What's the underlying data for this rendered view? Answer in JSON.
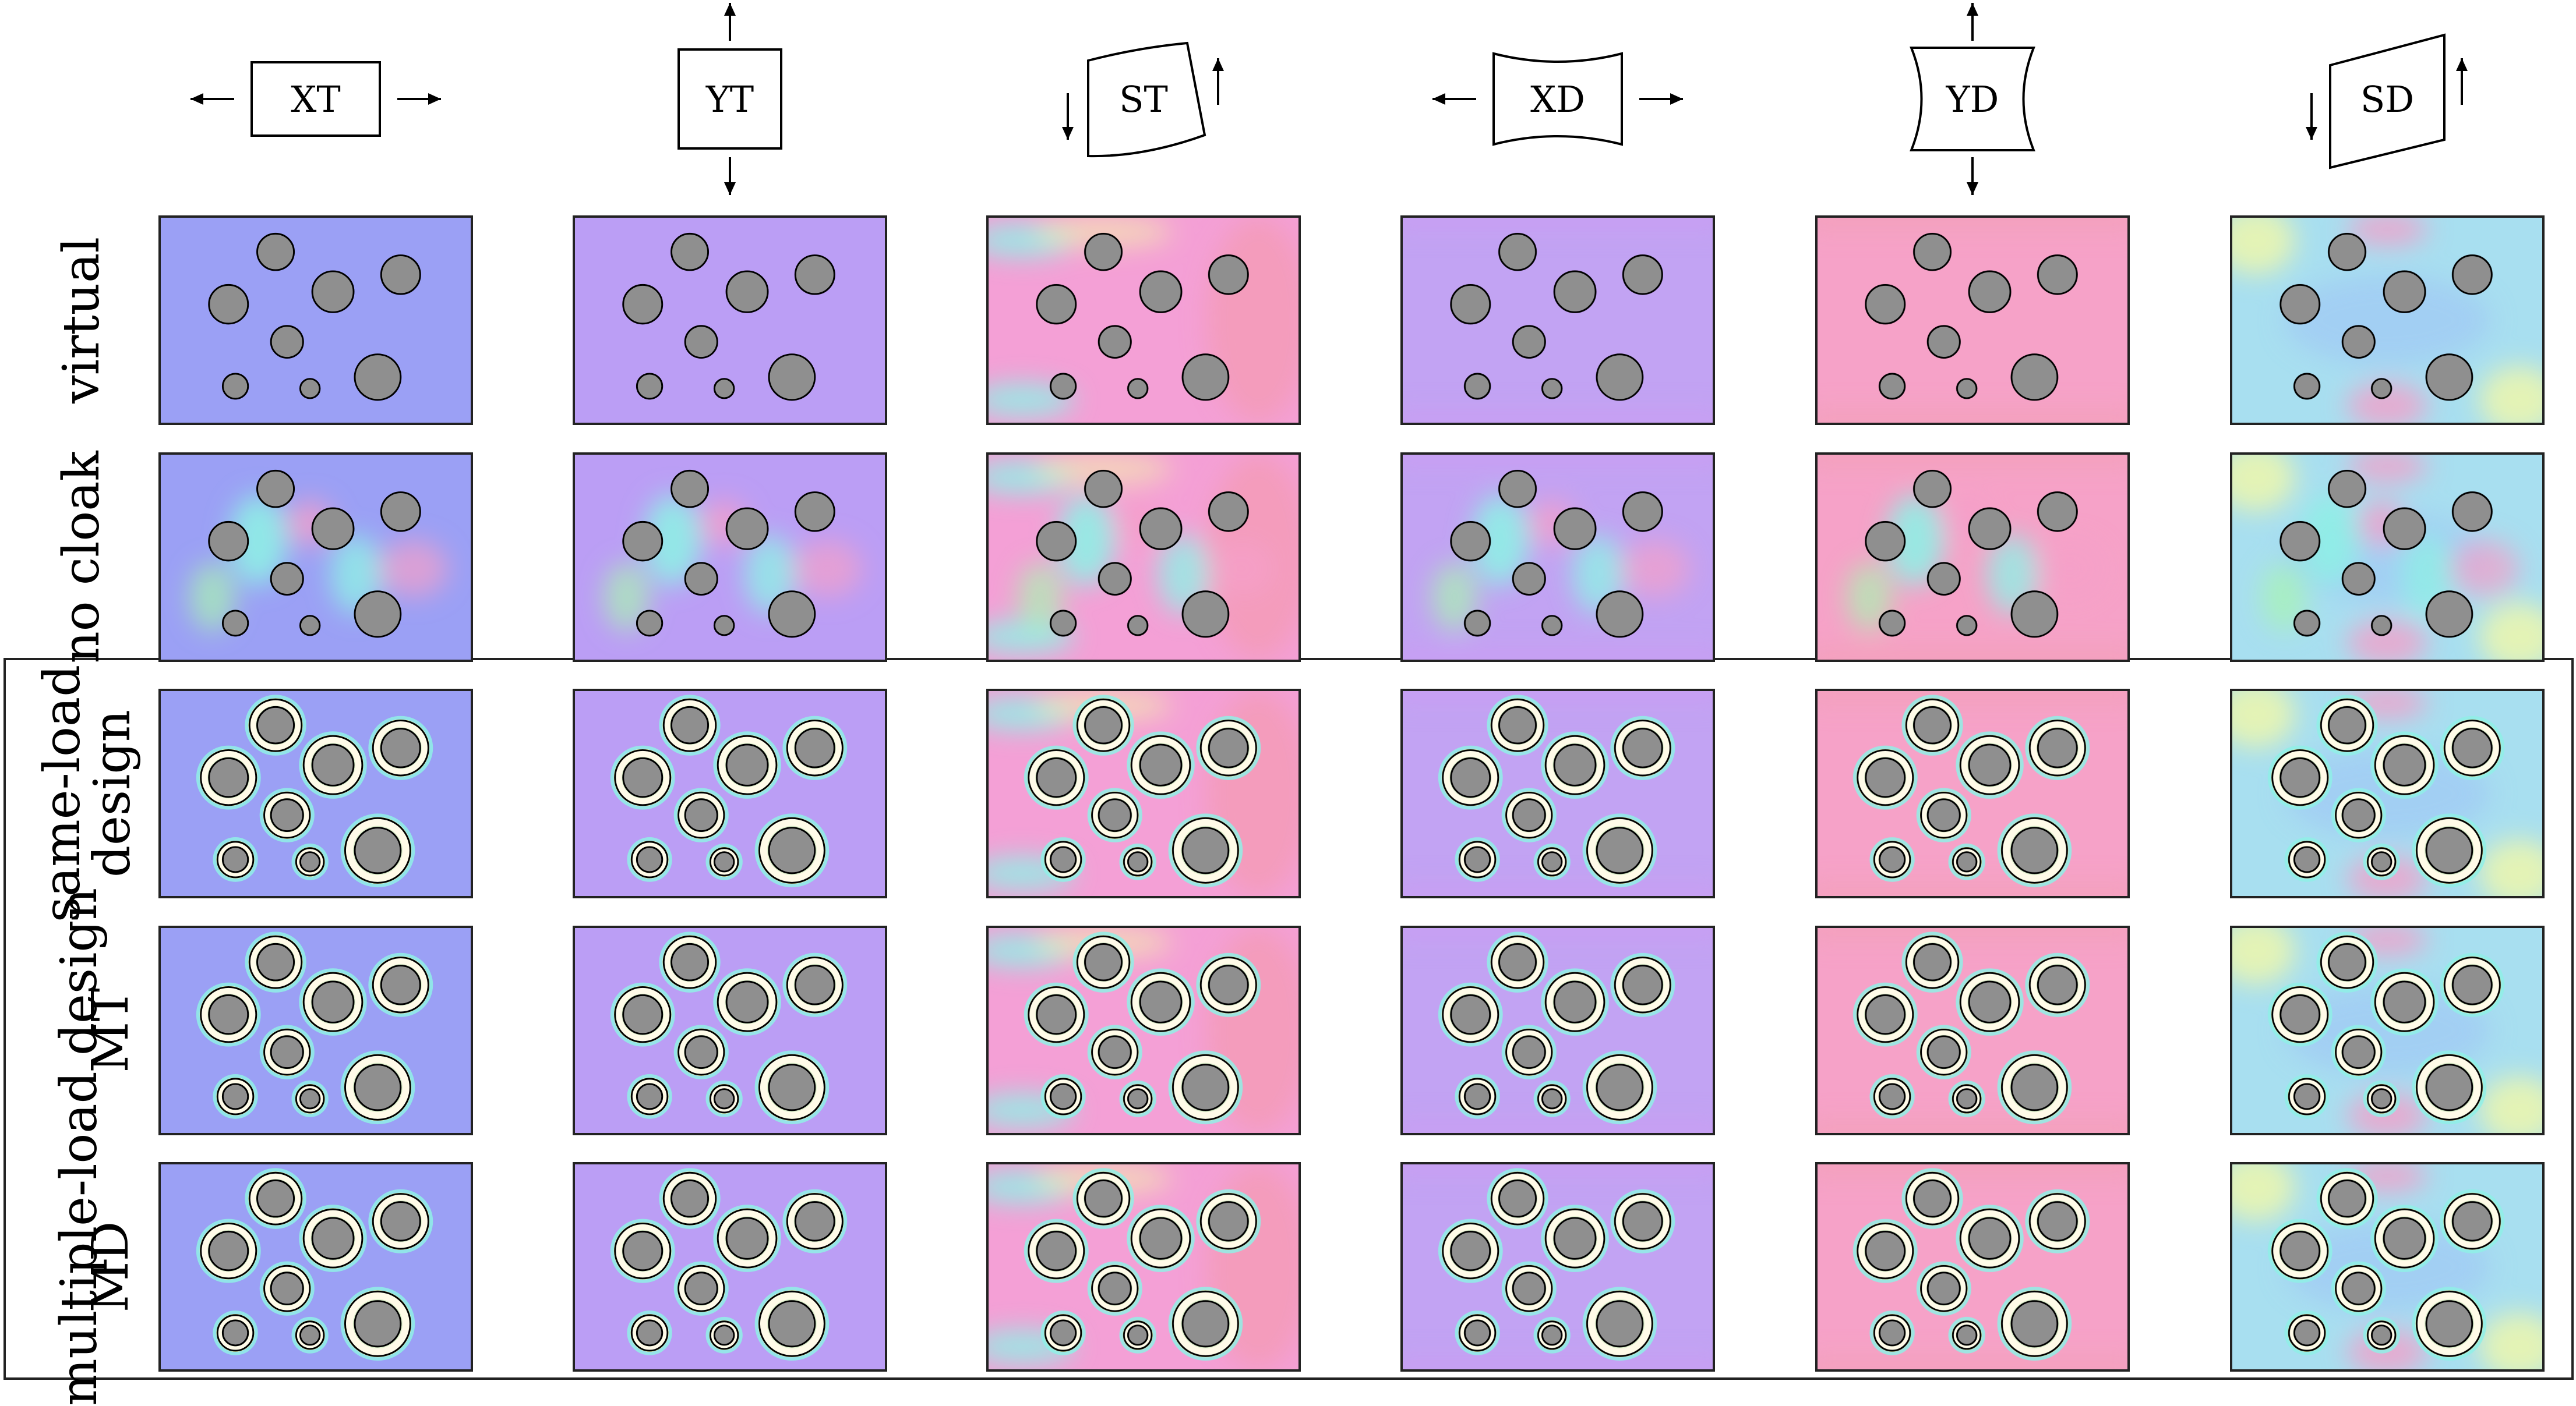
{
  "columns": [
    {
      "label": "XT",
      "shape": "rect",
      "arrows": "horizontal"
    },
    {
      "label": "YT",
      "shape": "rect-tall",
      "arrows": "vertical"
    },
    {
      "label": "ST",
      "shape": "sheared",
      "arrows": "shear"
    },
    {
      "label": "XD",
      "shape": "concave-h",
      "arrows": "horizontal"
    },
    {
      "label": "YD",
      "shape": "concave-v",
      "arrows": "vertical"
    },
    {
      "label": "SD",
      "shape": "parallelogram",
      "arrows": "shear"
    }
  ],
  "rows": [
    {
      "label_lines": [
        "virtual"
      ],
      "type": "virtual"
    },
    {
      "label_lines": [
        "no cloak"
      ],
      "type": "nocloak"
    },
    {
      "label_lines": [
        "same-load",
        "design"
      ],
      "type": "cloak"
    },
    {
      "label_lines": [
        "MT"
      ],
      "type": "cloak"
    },
    {
      "label_lines": [
        "MD"
      ],
      "type": "cloak"
    }
  ],
  "group_label": "multiple-load design",
  "colors": {
    "XT": "#9ba0f5",
    "YT": "#bb9ef5",
    "ST": "#f4a0d6",
    "XD": "#c2a3f3",
    "YD": "#f6a2c8",
    "SD": "#a8dff0",
    "inclusion": "#8f8f8f",
    "cyan": "#8ff0e6",
    "green": "#a8f5b0",
    "yellow": "#f3f7a8",
    "pink": "#f59fc9",
    "ring": "#ffffff"
  }
}
